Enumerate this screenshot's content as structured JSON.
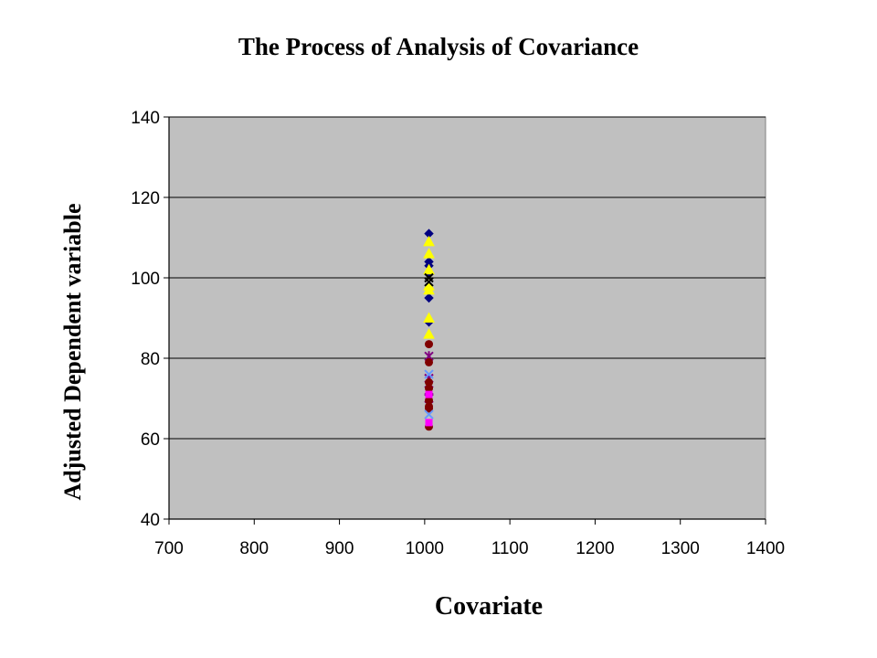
{
  "chart_data": {
    "type": "scatter",
    "title": "The Process of Analysis of Covariance",
    "xlabel": "Covariate",
    "ylabel": "Adjusted Dependent variable",
    "xlim": [
      700,
      1400
    ],
    "ylim": [
      40,
      140
    ],
    "xticks": [
      "700",
      "800",
      "900",
      "1000",
      "1100",
      "1200",
      "1300",
      "1400"
    ],
    "yticks": [
      "40",
      "60",
      "80",
      "100",
      "120",
      "140"
    ],
    "grid": true,
    "legend": "none",
    "plot_background": "#c0c0c0",
    "series": [
      {
        "color": "#000080",
        "marker": "diamond",
        "points": [
          [
            1005,
            111
          ],
          [
            1005,
            104
          ],
          [
            1005,
            103
          ],
          [
            1005,
            101
          ],
          [
            1005,
            95
          ],
          [
            1005,
            89
          ]
        ]
      },
      {
        "color": "#ffff00",
        "marker": "triangle",
        "points": [
          [
            1005,
            109
          ],
          [
            1005,
            106
          ],
          [
            1005,
            102
          ],
          [
            1005,
            98
          ],
          [
            1005,
            97
          ],
          [
            1005,
            90
          ],
          [
            1005,
            86
          ]
        ]
      },
      {
        "color": "#000000",
        "marker": "x",
        "points": [
          [
            1005,
            100
          ],
          [
            1005,
            99
          ]
        ]
      },
      {
        "color": "#800080",
        "marker": "star",
        "points": [
          [
            1005,
            80.5
          ],
          [
            1005,
            75
          ],
          [
            1005,
            72
          ],
          [
            1005,
            70
          ]
        ]
      },
      {
        "color": "#800000",
        "marker": "circle",
        "points": [
          [
            1005,
            83.5
          ],
          [
            1005,
            79
          ],
          [
            1005,
            74
          ],
          [
            1005,
            72.5
          ],
          [
            1005,
            69.5
          ],
          [
            1005,
            68
          ],
          [
            1005,
            67.5
          ],
          [
            1005,
            63
          ]
        ]
      },
      {
        "color": "#6699ff",
        "marker": "x",
        "points": [
          [
            1005,
            76
          ],
          [
            1005,
            66
          ]
        ]
      },
      {
        "color": "#ff00ff",
        "marker": "square",
        "points": [
          [
            1005,
            64
          ],
          [
            1005,
            71
          ]
        ]
      }
    ]
  }
}
